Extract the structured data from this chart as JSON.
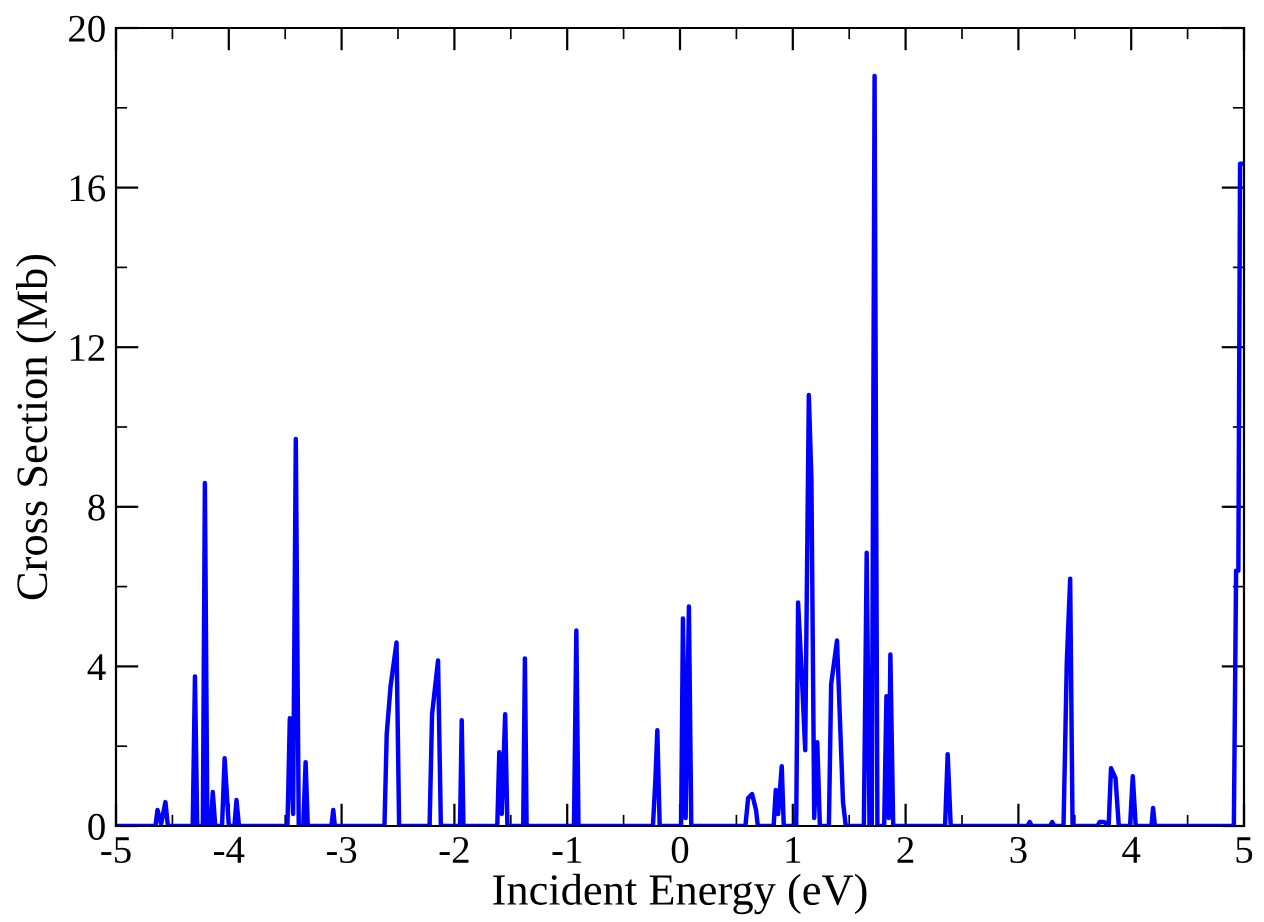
{
  "chart_data": {
    "type": "line",
    "xlabel": "Incident Energy (eV)",
    "ylabel": "Cross Section (Mb)",
    "grid": false,
    "legend": false,
    "marker": "none",
    "line_style": "solid",
    "xlim": [
      -5,
      5
    ],
    "ylim": [
      0,
      20
    ],
    "xticks": [
      {
        "value": -5,
        "label": "-5"
      },
      {
        "value": -4.5,
        "label": null
      },
      {
        "value": -4,
        "label": "-4"
      },
      {
        "value": -3.5,
        "label": null
      },
      {
        "value": -3,
        "label": "-3"
      },
      {
        "value": -2.5,
        "label": null
      },
      {
        "value": -2,
        "label": "-2"
      },
      {
        "value": -1.5,
        "label": null
      },
      {
        "value": -1,
        "label": "-1"
      },
      {
        "value": -0.5,
        "label": null
      },
      {
        "value": 0,
        "label": "0"
      },
      {
        "value": 0.5,
        "label": null
      },
      {
        "value": 1,
        "label": "1"
      },
      {
        "value": 1.5,
        "label": null
      },
      {
        "value": 2,
        "label": "2"
      },
      {
        "value": 2.5,
        "label": null
      },
      {
        "value": 3,
        "label": "3"
      },
      {
        "value": 3.5,
        "label": null
      },
      {
        "value": 4,
        "label": "4"
      },
      {
        "value": 4.5,
        "label": null
      },
      {
        "value": 5,
        "label": "5"
      }
    ],
    "yticks": [
      0,
      {
        "value": 2,
        "label": null
      },
      4,
      {
        "value": 6,
        "label": null
      },
      8,
      {
        "value": 10,
        "label": null
      },
      12,
      {
        "value": 14,
        "label": null
      },
      16,
      {
        "value": 18,
        "label": null
      },
      20
    ],
    "series": [
      {
        "color": "#0000ff",
        "x": [
          -5,
          -4.65,
          -4.632,
          -4.6,
          -4.562,
          -4.54,
          -4.32,
          -4.3,
          -4.28,
          -4.23,
          -4.212,
          -4.19,
          -4.16,
          -4.142,
          -4.12,
          -4.06,
          -4.037,
          -4.0,
          -3.95,
          -3.932,
          -3.91,
          -3.48,
          -3.459,
          -3.43,
          -3.406,
          -3.38,
          -3.34,
          -3.319,
          -3.3,
          -3.09,
          -3.074,
          -3.06,
          -2.62,
          -2.6,
          -2.566,
          -2.513,
          -2.49,
          -2.22,
          -2.198,
          -2.145,
          -2.12,
          -1.95,
          -1.935,
          -1.92,
          -1.62,
          -1.602,
          -1.58,
          -1.55,
          -1.53,
          -1.39,
          -1.375,
          -1.36,
          -0.94,
          -0.919,
          -0.9,
          -0.24,
          -0.219,
          -0.201,
          -0.18,
          0.01,
          0.026,
          0.05,
          0.079,
          0.1,
          0.58,
          0.604,
          0.639,
          0.674,
          0.69,
          0.83,
          0.849,
          0.87,
          0.902,
          0.92,
          1.03,
          1.047,
          1.082,
          1.11,
          1.142,
          1.165,
          1.19,
          1.217,
          1.24,
          1.32,
          1.34,
          1.392,
          1.445,
          1.47,
          1.63,
          1.655,
          1.68,
          1.7,
          1.725,
          1.75,
          1.81,
          1.83,
          1.85,
          1.865,
          1.89,
          2.35,
          2.373,
          2.4,
          3.08,
          3.1,
          3.12,
          3.28,
          3.3,
          3.32,
          3.4,
          3.429,
          3.459,
          3.48,
          3.7,
          3.72,
          3.76,
          3.8,
          3.821,
          3.861,
          3.89,
          3.99,
          4.014,
          4.04,
          4.18,
          4.194,
          4.21,
          4.91,
          4.93,
          4.95,
          4.965,
          5
        ],
        "values": [
          0,
          0,
          0.4,
          0.05,
          0.6,
          0,
          0,
          3.75,
          0,
          0,
          8.6,
          0,
          0,
          0.85,
          0,
          0,
          1.7,
          0,
          0,
          0.65,
          0,
          0,
          2.7,
          0.3,
          9.7,
          0,
          0,
          1.6,
          0,
          0,
          0.4,
          0,
          0,
          2.3,
          3.5,
          4.6,
          0,
          0,
          2.8,
          4.15,
          0,
          0,
          2.65,
          0,
          0,
          1.85,
          0.3,
          2.8,
          0,
          0,
          4.2,
          0,
          0,
          4.9,
          0,
          0,
          1.1,
          2.4,
          0,
          0,
          5.2,
          0.2,
          5.5,
          0,
          0,
          0.7,
          0.8,
          0.4,
          0,
          0,
          0.9,
          0.3,
          1.5,
          0,
          0,
          5.6,
          3.65,
          1.9,
          10.8,
          8.7,
          0.2,
          2.1,
          0,
          0,
          3.55,
          4.65,
          0.6,
          0,
          0,
          6.85,
          0,
          0,
          18.8,
          0,
          0,
          3.25,
          0.2,
          4.3,
          0,
          0,
          1.8,
          0,
          0,
          0.1,
          0,
          0,
          0.1,
          0,
          0,
          4.1,
          6.2,
          0,
          0,
          0.1,
          0.1,
          0,
          1.45,
          1.2,
          0,
          0,
          1.25,
          0,
          0,
          0.45,
          0,
          0,
          6.4,
          6.4,
          16.6,
          16.6
        ]
      }
    ]
  }
}
